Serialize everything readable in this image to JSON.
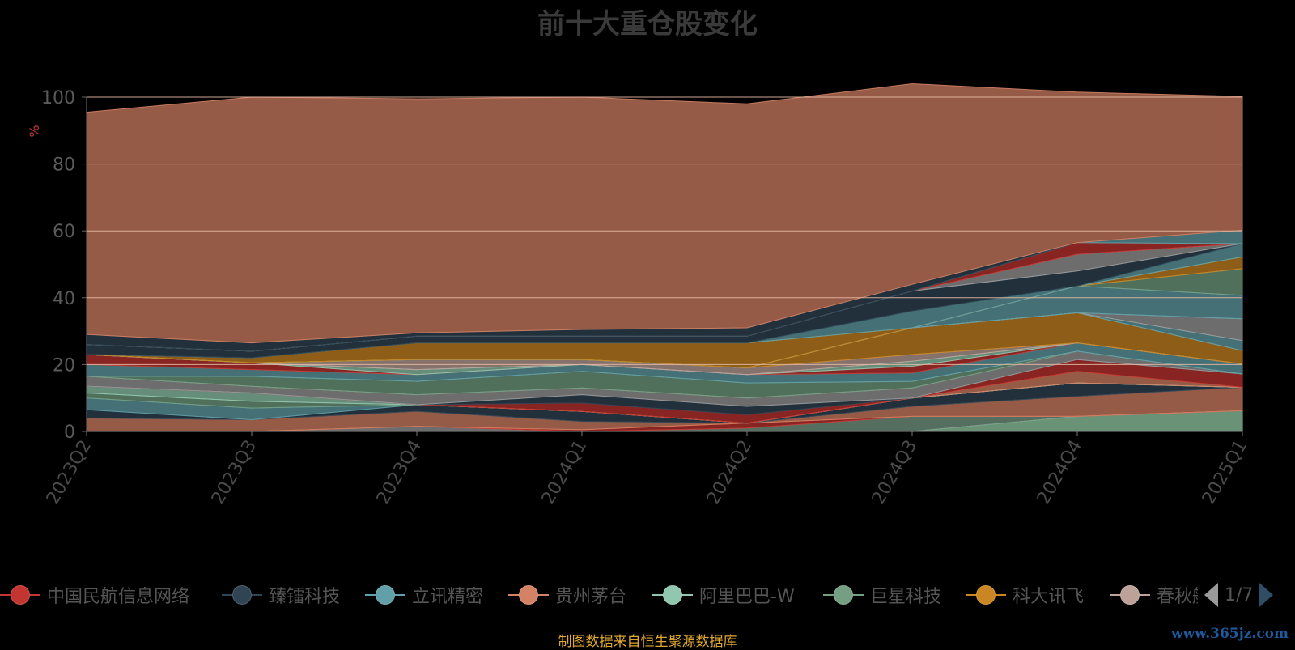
{
  "footer": {
    "source_note": "制图数据来自恒生聚源数据库",
    "watermark": "www.365jz.com"
  },
  "legend": {
    "page_indicator": "1/7"
  },
  "chart_data": {
    "type": "area",
    "stacked": true,
    "title": "前十大重仓股变化",
    "ylabel": "%",
    "xlabel": "",
    "categories": [
      "2023Q2",
      "2023Q3",
      "2023Q4",
      "2024Q1",
      "2024Q2",
      "2024Q3",
      "2024Q4",
      "2025Q1"
    ],
    "ylim": [
      0,
      100
    ],
    "yticks": [
      0,
      20,
      40,
      60,
      80,
      100
    ],
    "grid": true,
    "legend_position": "bottom",
    "visible_legend_entries": [
      {
        "name": "中国民航信息网络",
        "color": "#c23531"
      },
      {
        "name": "臻镭科技",
        "color": "#2f4554"
      },
      {
        "name": "立讯精密",
        "color": "#61a0a8"
      },
      {
        "name": "贵州茅台",
        "color": "#d48265"
      },
      {
        "name": "阿里巴巴-W",
        "color": "#91c7ae"
      },
      {
        "name": "巨星科技",
        "color": "#749f83"
      },
      {
        "name": "科大讯飞",
        "color": "#ca8622"
      },
      {
        "name": "春秋航空",
        "color": "#bda29a"
      }
    ],
    "layers": [
      {
        "color": "#95d0a8",
        "values": [
          0,
          0,
          0,
          0,
          0,
          0,
          4.5,
          6.2
        ]
      },
      {
        "color": "#9b9b9b",
        "values": [
          0,
          0,
          1.5,
          0,
          0,
          0,
          0,
          0
        ]
      },
      {
        "color": "#7a9c88",
        "values": [
          0,
          0,
          0,
          0,
          1.0,
          4.5,
          0,
          0
        ]
      },
      {
        "color": "#c23531",
        "values": [
          0,
          0,
          0,
          0.5,
          1.5,
          0,
          0,
          0
        ]
      },
      {
        "color": "#d48265",
        "values": [
          4.0,
          3.5,
          4.5,
          2.5,
          0,
          3.0,
          6.0,
          7.0
        ]
      },
      {
        "color": "#2f4554",
        "values": [
          2.5,
          0,
          2.0,
          3.0,
          0,
          2.5,
          4.0,
          0
        ]
      },
      {
        "color": "#61a0a8",
        "values": [
          3.5,
          3.5,
          0,
          0,
          0,
          0,
          0,
          0
        ]
      },
      {
        "color": "#749f83",
        "values": [
          1.5,
          2.0,
          0,
          0,
          0,
          0,
          0,
          0
        ]
      },
      {
        "color": "#91c7ae",
        "values": [
          2.0,
          2.5,
          0,
          0,
          0,
          0,
          0,
          0
        ]
      },
      {
        "color": "#d48265",
        "values": [
          0,
          0,
          0,
          0,
          0,
          0,
          3.5,
          0
        ]
      },
      {
        "color": "#c23531",
        "values": [
          0,
          0,
          0,
          2.5,
          2.5,
          0,
          3.5,
          4.0
        ]
      },
      {
        "color": "#2f4554",
        "values": [
          0,
          0,
          0,
          2.5,
          2.5,
          0,
          0,
          0
        ]
      },
      {
        "color": "#9b9b9b",
        "values": [
          3.0,
          2.0,
          3.0,
          2.0,
          2.5,
          3.0,
          2.5,
          0
        ]
      },
      {
        "color": "#749f83",
        "values": [
          0,
          3.0,
          4.0,
          5.0,
          4.5,
          2.0,
          0,
          0
        ]
      },
      {
        "color": "#61a0a8",
        "values": [
          3.5,
          2.0,
          2.0,
          2.0,
          2.5,
          2.5,
          2.5,
          3.0
        ]
      },
      {
        "color": "#c23531",
        "values": [
          3.0,
          2.0,
          0,
          0,
          0,
          2.0,
          0,
          0
        ]
      },
      {
        "color": "#91c7ae",
        "values": [
          0,
          0,
          1.5,
          0,
          0,
          1.5,
          0,
          0
        ]
      },
      {
        "color": "#bda29a",
        "values": [
          0,
          0,
          3.0,
          1.5,
          2.0,
          2.0,
          0,
          0
        ]
      },
      {
        "color": "#ca8622",
        "values": [
          0,
          0,
          0,
          0,
          0,
          8.0,
          9.0,
          4.0
        ]
      },
      {
        "color": "#61a0a8",
        "values": [
          0,
          0,
          0,
          0,
          0,
          0,
          0,
          3.0
        ]
      },
      {
        "color": "#9b9b9b",
        "values": [
          0,
          0,
          0,
          0,
          0,
          0,
          0,
          6.5
        ]
      },
      {
        "color": "#61a0a8",
        "values": [
          0,
          0,
          0,
          0,
          0,
          0,
          8.0,
          7.0
        ]
      },
      {
        "color": "#749f83",
        "values": [
          0,
          0,
          0,
          0,
          0,
          0,
          0,
          8.0
        ]
      },
      {
        "color": "#ca8622",
        "values": [
          0,
          1.5,
          5.0,
          5.0,
          7.5,
          0,
          0,
          3.5
        ]
      },
      {
        "color": "#61a0a8",
        "values": [
          0,
          0,
          0,
          0,
          0,
          5.0,
          0,
          4.0
        ]
      },
      {
        "color": "#2f4554",
        "values": [
          3.0,
          2.0,
          2.0,
          2.0,
          2.0,
          6.0,
          4.5,
          0
        ]
      },
      {
        "color": "#9b9b9b",
        "values": [
          0,
          0,
          0,
          0,
          0,
          0,
          5.0,
          0
        ]
      },
      {
        "color": "#c23531",
        "values": [
          0,
          0,
          0,
          0,
          0,
          0,
          3.5,
          0
        ]
      },
      {
        "color": "#61a0a8",
        "values": [
          0,
          0,
          0,
          0,
          0,
          0,
          0,
          4.0
        ]
      },
      {
        "color": "#2f4554",
        "values": [
          3.0,
          2.5,
          1.0,
          2.0,
          2.5,
          2.0,
          0,
          0
        ]
      },
      {
        "color": "#d48265",
        "values": [
          66.5,
          73.5,
          70.0,
          69.5,
          67.0,
          60.0,
          45.0,
          40.0
        ]
      }
    ]
  }
}
